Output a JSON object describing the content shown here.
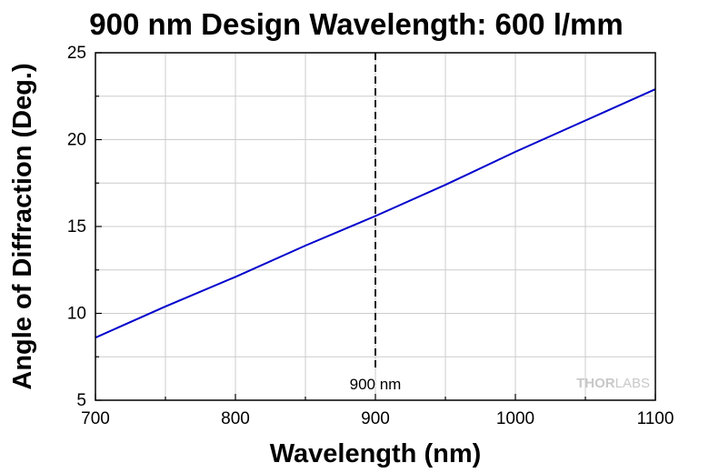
{
  "chart_data": {
    "type": "line",
    "title": "900 nm Design Wavelength: 600 l/mm",
    "xlabel": "Wavelength (nm)",
    "ylabel": "Angle of Diffraction (Deg.)",
    "xlim": [
      700,
      1100
    ],
    "ylim": [
      5,
      25
    ],
    "xticks": [
      700,
      800,
      900,
      1000,
      1100
    ],
    "yticks": [
      5,
      10,
      15,
      20,
      25
    ],
    "grid": true,
    "series": [
      {
        "color": "#0000cc",
        "x": [
          700,
          750,
          800,
          850,
          900,
          950,
          1000,
          1050,
          1100
        ],
        "y": [
          8.6,
          10.4,
          12.1,
          13.9,
          15.6,
          17.4,
          19.3,
          21.1,
          22.9
        ]
      }
    ],
    "reference_line": {
      "x": 900,
      "label": "900 nm",
      "style": "dashed"
    },
    "watermark": {
      "bold": "THOR",
      "light": "LABS"
    }
  }
}
